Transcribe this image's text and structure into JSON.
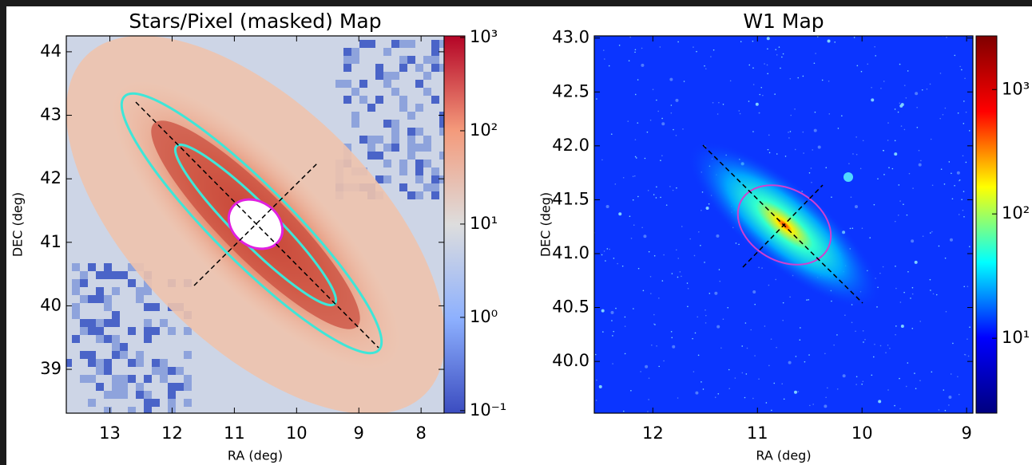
{
  "chart_data": [
    {
      "type": "image",
      "title": "Stars/Pixel (masked) Map",
      "xlabel": "RA (deg)",
      "ylabel": "DEC (deg)",
      "xlim": [
        13.7,
        7.63
      ],
      "ylim": [
        38.31,
        44.25
      ],
      "xticks": [
        13,
        12,
        11,
        10,
        9,
        8
      ],
      "yticks": [
        39,
        40,
        41,
        42,
        43,
        44
      ],
      "colorbar": {
        "colormap": "coolwarm",
        "scale": "log",
        "lim": [
          0.094,
          1040
        ],
        "ticks": [
          {
            "value": 0.1,
            "label": "10⁻¹"
          },
          {
            "value": 1,
            "label": "10⁰"
          },
          {
            "value": 10,
            "label": "10¹"
          },
          {
            "value": 100,
            "label": "10²"
          },
          {
            "value": 1000,
            "label": "10³"
          }
        ]
      }
    },
    {
      "type": "image",
      "title": "W1 Map",
      "xlabel": "RA (deg)",
      "ylabel": "DEC (deg)",
      "xlim": [
        12.56,
        8.94
      ],
      "ylim": [
        39.52,
        43.02
      ],
      "xticks": [
        12,
        11,
        10,
        9
      ],
      "yticks": [
        {
          "value": 40,
          "label": "40.0"
        },
        40.5,
        {
          "value": 41,
          "label": "41.0"
        },
        41.5,
        {
          "value": 42,
          "label": "42.0"
        },
        42.5,
        {
          "value": 43,
          "label": "43.0"
        }
      ],
      "colorbar": {
        "colormap": "jet",
        "scale": "log",
        "lim": [
          2.5,
          2700
        ],
        "ticks": [
          {
            "value": 10,
            "label": "10¹"
          },
          {
            "value": 100,
            "label": "10²"
          },
          {
            "value": 1000,
            "label": "10³"
          }
        ]
      }
    }
  ]
}
